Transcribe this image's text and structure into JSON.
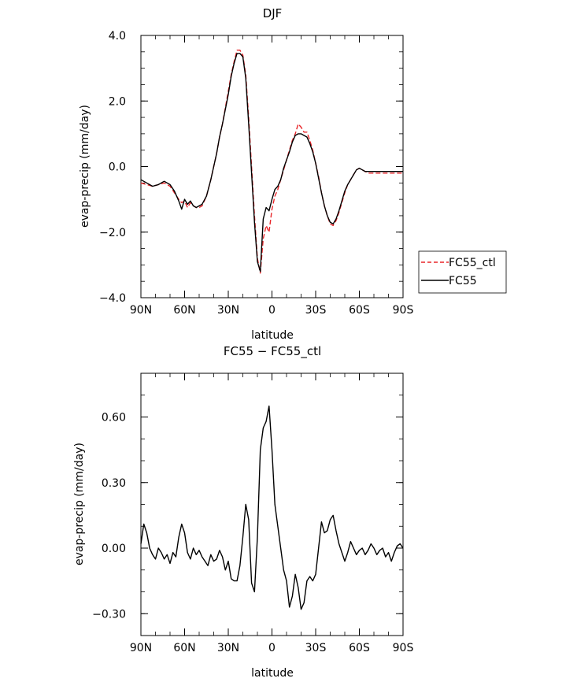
{
  "chart_data": [
    {
      "type": "line",
      "title": "DJF",
      "xlabel": "latitude",
      "ylabel": "evap-precip (mm/day)",
      "xlim": [
        90,
        -90
      ],
      "ylim": [
        -4.0,
        4.0
      ],
      "xticks": [
        {
          "value": 90,
          "label": "90N"
        },
        {
          "value": 60,
          "label": "60N"
        },
        {
          "value": 30,
          "label": "30N"
        },
        {
          "value": 0,
          "label": "0"
        },
        {
          "value": -30,
          "label": "30S"
        },
        {
          "value": -60,
          "label": "60S"
        },
        {
          "value": -90,
          "label": "90S"
        }
      ],
      "yticks": [
        {
          "value": 4.0,
          "label": "4.0"
        },
        {
          "value": 2.0,
          "label": "2.0"
        },
        {
          "value": 0.0,
          "label": "0.0"
        },
        {
          "value": -2.0,
          "label": "−2.0"
        },
        {
          "value": -4.0,
          "label": "−4.0"
        }
      ],
      "legend": {
        "position": "right",
        "entries": [
          {
            "name": "FC55_ctl",
            "color": "#e8262a",
            "dash": "dashed"
          },
          {
            "name": "FC55",
            "color": "#000000",
            "dash": "solid"
          }
        ]
      },
      "series": [
        {
          "name": "FC55_ctl",
          "color": "#e8262a",
          "dash": "dashed",
          "x": [
            90,
            86,
            82,
            78,
            74,
            70,
            67,
            64,
            62,
            60,
            58,
            56,
            54,
            52,
            50,
            48,
            45,
            42,
            40,
            38,
            36,
            34,
            32,
            30,
            28,
            26,
            24,
            22,
            20,
            18,
            16,
            14,
            12,
            10,
            8,
            6,
            4,
            2,
            0,
            -2,
            -4,
            -6,
            -8,
            -10,
            -12,
            -14,
            -16,
            -18,
            -20,
            -22,
            -24,
            -26,
            -28,
            -30,
            -32,
            -34,
            -36,
            -38,
            -40,
            -42,
            -44,
            -46,
            -48,
            -50,
            -52,
            -54,
            -56,
            -58,
            -60,
            -62,
            -64,
            -66,
            -68,
            -70,
            -72,
            -74,
            -76,
            -78,
            -80,
            -82,
            -84,
            -86,
            -88,
            -90
          ],
          "y": [
            -0.5,
            -0.55,
            -0.6,
            -0.55,
            -0.5,
            -0.6,
            -0.8,
            -1.0,
            -1.1,
            -1.05,
            -1.25,
            -1.1,
            -1.2,
            -1.25,
            -1.25,
            -1.2,
            -0.9,
            -0.4,
            0.0,
            0.4,
            0.9,
            1.3,
            1.8,
            2.3,
            2.8,
            3.2,
            3.55,
            3.55,
            3.4,
            2.8,
            1.5,
            0.0,
            -1.5,
            -2.8,
            -3.25,
            -2.2,
            -1.8,
            -2.0,
            -1.3,
            -0.9,
            -0.7,
            -0.4,
            -0.1,
            0.2,
            0.5,
            0.8,
            1.0,
            1.3,
            1.2,
            1.05,
            1.05,
            0.8,
            0.5,
            0.1,
            -0.3,
            -0.8,
            -1.2,
            -1.5,
            -1.75,
            -1.8,
            -1.65,
            -1.4,
            -1.1,
            -0.8,
            -0.55,
            -0.4,
            -0.25,
            -0.1,
            -0.05,
            -0.1,
            -0.15,
            -0.2,
            -0.2,
            -0.2,
            -0.2,
            -0.2,
            -0.2,
            -0.2,
            -0.2,
            -0.2,
            -0.2,
            -0.2,
            -0.2,
            -0.2
          ]
        },
        {
          "name": "FC55",
          "color": "#000000",
          "dash": "solid",
          "x": [
            90,
            86,
            82,
            78,
            74,
            70,
            67,
            64,
            62,
            60,
            58,
            56,
            54,
            52,
            50,
            48,
            45,
            42,
            40,
            38,
            36,
            34,
            32,
            30,
            28,
            26,
            24,
            22,
            20,
            18,
            16,
            14,
            12,
            10,
            8,
            6,
            4,
            2,
            0,
            -2,
            -4,
            -6,
            -8,
            -10,
            -12,
            -14,
            -16,
            -18,
            -20,
            -22,
            -24,
            -26,
            -28,
            -30,
            -32,
            -34,
            -36,
            -38,
            -40,
            -42,
            -44,
            -46,
            -48,
            -50,
            -52,
            -54,
            -56,
            -58,
            -60,
            -62,
            -64,
            -66,
            -68,
            -70,
            -72,
            -74,
            -76,
            -78,
            -80,
            -82,
            -84,
            -86,
            -88,
            -90
          ],
          "y": [
            -0.4,
            -0.5,
            -0.6,
            -0.55,
            -0.45,
            -0.55,
            -0.75,
            -1.05,
            -1.3,
            -1.0,
            -1.15,
            -1.05,
            -1.2,
            -1.25,
            -1.2,
            -1.15,
            -0.9,
            -0.4,
            0.0,
            0.4,
            0.9,
            1.3,
            1.75,
            2.2,
            2.75,
            3.15,
            3.45,
            3.45,
            3.35,
            2.7,
            1.3,
            -0.2,
            -1.7,
            -2.9,
            -3.2,
            -1.6,
            -1.25,
            -1.35,
            -1.0,
            -0.7,
            -0.6,
            -0.4,
            -0.05,
            0.2,
            0.45,
            0.75,
            0.95,
            1.0,
            1.0,
            0.95,
            0.9,
            0.7,
            0.45,
            0.1,
            -0.35,
            -0.8,
            -1.2,
            -1.5,
            -1.7,
            -1.75,
            -1.6,
            -1.35,
            -1.05,
            -0.75,
            -0.55,
            -0.4,
            -0.25,
            -0.1,
            -0.05,
            -0.1,
            -0.15,
            -0.15,
            -0.15,
            -0.15,
            -0.15,
            -0.15,
            -0.15,
            -0.15,
            -0.15,
            -0.15,
            -0.15,
            -0.15,
            -0.15,
            -0.15
          ]
        }
      ]
    },
    {
      "type": "line",
      "title": "FC55 − FC55_ctl",
      "xlabel": "latitude",
      "ylabel": "evap-precip (mm/day)",
      "xlim": [
        90,
        -90
      ],
      "ylim": [
        -0.4,
        0.8
      ],
      "xticks": [
        {
          "value": 90,
          "label": "90N"
        },
        {
          "value": 60,
          "label": "60N"
        },
        {
          "value": 30,
          "label": "30N"
        },
        {
          "value": 0,
          "label": "0"
        },
        {
          "value": -30,
          "label": "30S"
        },
        {
          "value": -60,
          "label": "60S"
        },
        {
          "value": -90,
          "label": "90S"
        }
      ],
      "yticks": [
        {
          "value": 0.6,
          "label": "0.60"
        },
        {
          "value": 0.3,
          "label": "0.30"
        },
        {
          "value": 0.0,
          "label": "0.00"
        },
        {
          "value": -0.3,
          "label": "−0.30"
        }
      ],
      "series": [
        {
          "color": "#000000",
          "dash": "solid",
          "x": [
            90,
            88,
            86,
            84,
            82,
            80,
            78,
            76,
            74,
            72,
            70,
            68,
            66,
            64,
            62,
            60,
            58,
            56,
            54,
            52,
            50,
            48,
            46,
            44,
            42,
            40,
            38,
            36,
            34,
            32,
            30,
            28,
            26,
            24,
            22,
            20,
            18,
            16,
            14,
            12,
            10,
            8,
            6,
            4,
            2,
            0,
            -2,
            -4,
            -6,
            -8,
            -10,
            -12,
            -14,
            -16,
            -18,
            -20,
            -22,
            -24,
            -26,
            -28,
            -30,
            -32,
            -34,
            -36,
            -38,
            -40,
            -42,
            -44,
            -46,
            -48,
            -50,
            -52,
            -54,
            -56,
            -58,
            -60,
            -62,
            -64,
            -66,
            -68,
            -70,
            -72,
            -74,
            -76,
            -78,
            -80,
            -82,
            -84,
            -86,
            -88,
            -90
          ],
          "y": [
            0.02,
            0.11,
            0.07,
            0.0,
            -0.03,
            -0.05,
            0.0,
            -0.02,
            -0.05,
            -0.03,
            -0.07,
            -0.02,
            -0.04,
            0.05,
            0.11,
            0.07,
            -0.02,
            -0.05,
            0.0,
            -0.03,
            -0.01,
            -0.04,
            -0.06,
            -0.08,
            -0.03,
            -0.06,
            -0.05,
            -0.01,
            -0.04,
            -0.1,
            -0.06,
            -0.14,
            -0.15,
            -0.15,
            -0.08,
            0.05,
            0.2,
            0.13,
            -0.16,
            -0.2,
            0.05,
            0.45,
            0.55,
            0.58,
            0.65,
            0.45,
            0.2,
            0.1,
            0.0,
            -0.1,
            -0.15,
            -0.27,
            -0.22,
            -0.12,
            -0.18,
            -0.28,
            -0.25,
            -0.15,
            -0.13,
            -0.15,
            -0.12,
            0.0,
            0.12,
            0.07,
            0.08,
            0.13,
            0.15,
            0.08,
            0.02,
            -0.02,
            -0.06,
            -0.02,
            0.03,
            0.0,
            -0.03,
            -0.01,
            0.0,
            -0.03,
            -0.01,
            0.02,
            0.0,
            -0.03,
            -0.01,
            0.0,
            -0.04,
            -0.02,
            -0.06,
            -0.02,
            0.01,
            0.02,
            0.0
          ]
        }
      ]
    }
  ]
}
